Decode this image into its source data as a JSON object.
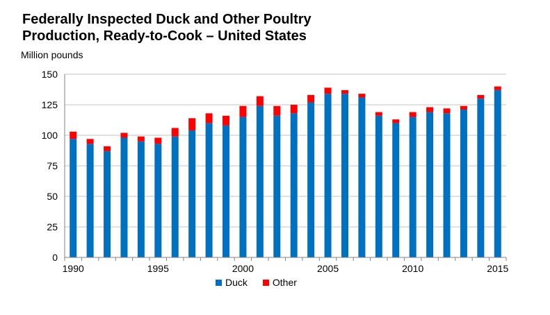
{
  "chart_data": {
    "type": "bar",
    "stacked": true,
    "title_lines": [
      "Federally Inspected Duck and Other Poultry",
      "Production, Ready-to-Cook – United States"
    ],
    "title": "Federally Inspected Duck and Other Poultry Production, Ready-to-Cook – United States",
    "ylabel": "Million pounds",
    "xlabel": "",
    "ylim": [
      0,
      150
    ],
    "yticks": [
      "0",
      "25",
      "50",
      "75",
      "100",
      "125",
      "150"
    ],
    "xtick_labels": [
      "1990",
      "1995",
      "2000",
      "2005",
      "2010",
      "2015"
    ],
    "grid": true,
    "legend_position": "bottom",
    "categories": [
      "1990",
      "1991",
      "1992",
      "1993",
      "1994",
      "1995",
      "1996",
      "1997",
      "1998",
      "1999",
      "2000",
      "2001",
      "2002",
      "2003",
      "2004",
      "2005",
      "2006",
      "2007",
      "2008",
      "2009",
      "2010",
      "2011",
      "2012",
      "2013",
      "2014",
      "2015"
    ],
    "series": [
      {
        "name": "Duck",
        "color": "#0070C0",
        "values": [
          97,
          93,
          87,
          98,
          95,
          93,
          99,
          104,
          110,
          108,
          115,
          124,
          116,
          118,
          127,
          134,
          134,
          131,
          116,
          110,
          115,
          119,
          118,
          121,
          130,
          137
        ]
      },
      {
        "name": "Other",
        "color": "#FF0000",
        "values": [
          6,
          4,
          4,
          4,
          4,
          5,
          7,
          10,
          8,
          8,
          9,
          8,
          8,
          7,
          6,
          5,
          3,
          3,
          3,
          3,
          4,
          4,
          4,
          3,
          3,
          3
        ]
      }
    ]
  }
}
